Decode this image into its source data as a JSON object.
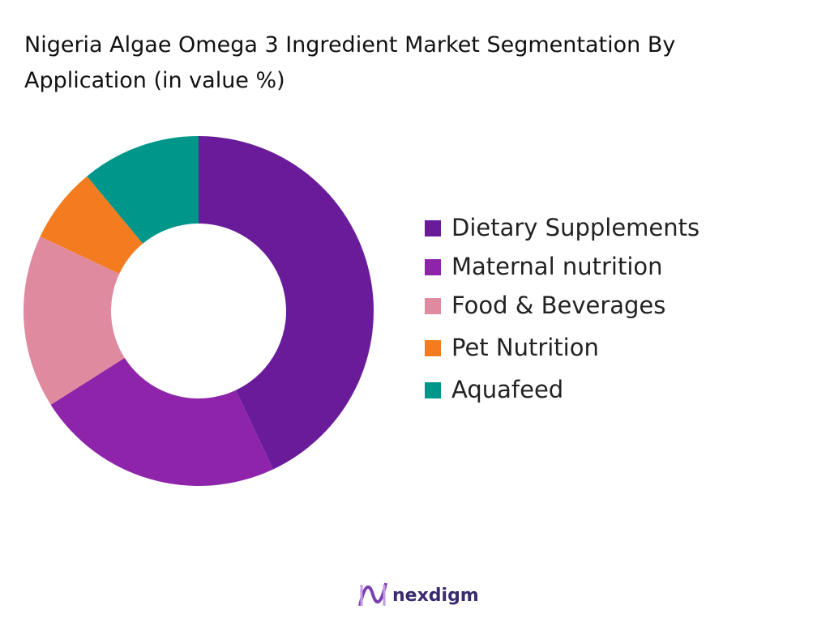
{
  "chart_data": {
    "type": "donut",
    "title": "Nigeria Algae Omega 3 Ingredient Market  Segmentation By Application (in value %)",
    "categories": [
      "Dietary Supplements",
      "Maternal nutrition",
      "Food & Beverages",
      "Pet Nutrition",
      "Aquafeed"
    ],
    "values": [
      43,
      23,
      16,
      7,
      11
    ],
    "colors": [
      "#6a1b9a",
      "#8e24aa",
      "#e08aa0",
      "#f47c20",
      "#00968a"
    ],
    "legend": "right"
  },
  "logo": "nexdigm"
}
